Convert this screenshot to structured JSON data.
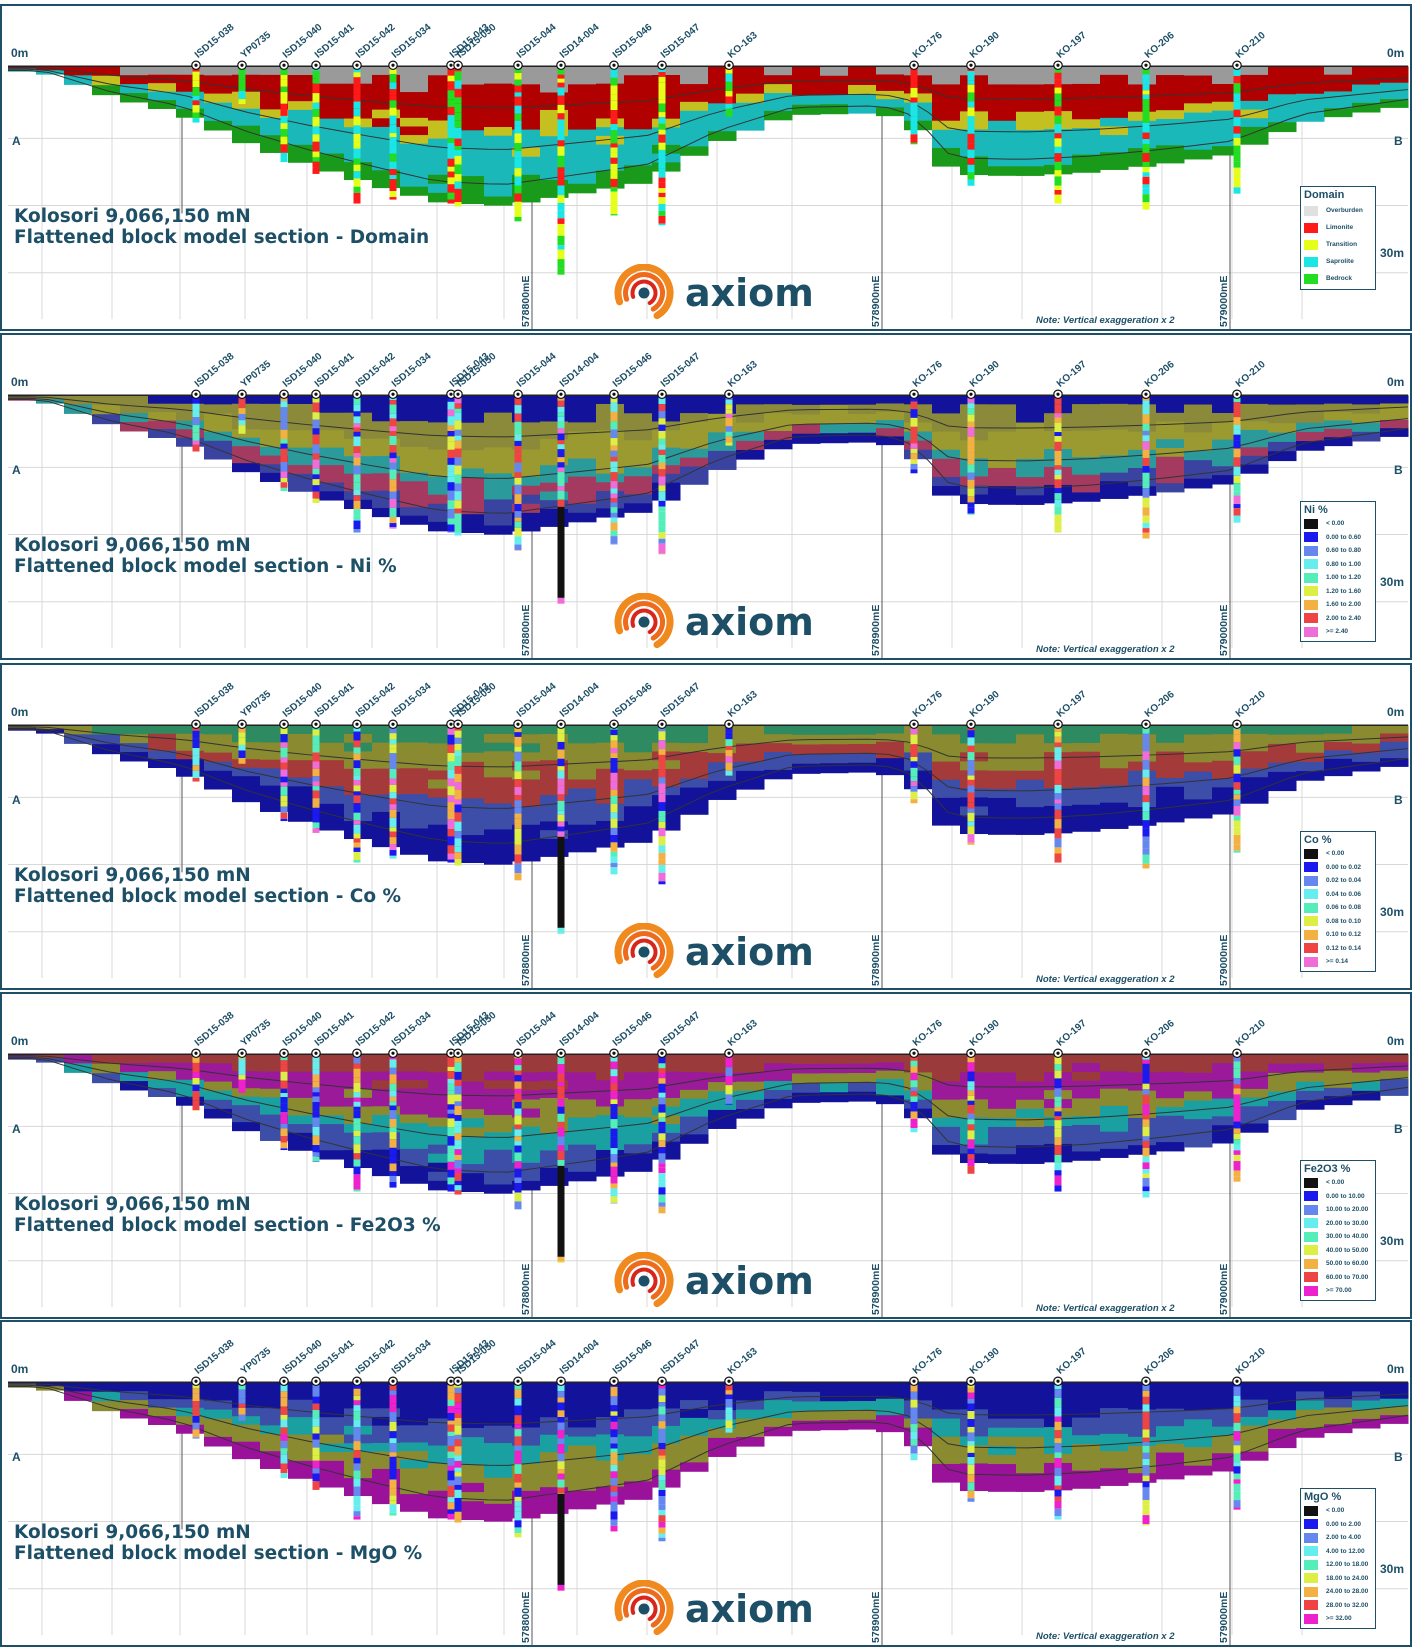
{
  "common": {
    "depth_top": "0m",
    "depth_bottom": "30m",
    "side_left": "A",
    "side_right": "B",
    "note": "Note: Vertical exaggeration x 2",
    "eastings": [
      "578800mE",
      "578900mE",
      "579000mE"
    ],
    "logo_text": "axiom",
    "section_line": "Kolosori 9,066,150 mN",
    "holes": [
      "ISD15-038",
      "YP0735",
      "ISD15-040",
      "ISD15-041",
      "ISD15-042",
      "ISD15-034",
      "ISD15-043",
      "ISD15-050",
      "ISD15-044",
      "ISD14-004",
      "ISD15-046",
      "ISD15-047",
      "KO-163",
      "KO-176",
      "KO-190",
      "KO-197",
      "KO-206",
      "KO-210"
    ]
  },
  "colors": {
    "brand_blue": "#1d4f66",
    "logo_orange": "#f08a1e",
    "logo_red": "#d9261c"
  },
  "panels": [
    {
      "id": "domain",
      "title": "Flattened block model section - Domain",
      "legend_title": "Domain",
      "legend": [
        {
          "label": "Overburden",
          "color": "#e0e0e0"
        },
        {
          "label": "Limonite",
          "color": "#ff1a1a"
        },
        {
          "label": "Transition",
          "color": "#e6ff1a"
        },
        {
          "label": "Saprolite",
          "color": "#1ae6e6"
        },
        {
          "label": "Bedrock",
          "color": "#22dd22"
        }
      ]
    },
    {
      "id": "ni",
      "title": "Flattened block model section - Ni %",
      "legend_title": "Ni %",
      "legend": [
        {
          "label": "< 0.00",
          "color": "#111111"
        },
        {
          "label": "0.00 to 0.60",
          "color": "#1a1aee"
        },
        {
          "label": "0.60 to 0.80",
          "color": "#6688ee"
        },
        {
          "label": "0.80 to 1.00",
          "color": "#66eeee"
        },
        {
          "label": "1.00 to 1.20",
          "color": "#55eebb"
        },
        {
          "label": "1.20 to 1.60",
          "color": "#ddee44"
        },
        {
          "label": "1.60 to 2.00",
          "color": "#f2b142"
        },
        {
          "label": "2.00 to 2.40",
          "color": "#ee4444"
        },
        {
          "label": ">= 2.40",
          "color": "#f06cd8"
        }
      ]
    },
    {
      "id": "co",
      "title": "Flattened block model section - Co %",
      "legend_title": "Co %",
      "legend": [
        {
          "label": "< 0.00",
          "color": "#111111"
        },
        {
          "label": "0.00 to 0.02",
          "color": "#1a1aee"
        },
        {
          "label": "0.02 to 0.04",
          "color": "#6688ee"
        },
        {
          "label": "0.04 to 0.06",
          "color": "#66eeee"
        },
        {
          "label": "0.06 to 0.08",
          "color": "#55eebb"
        },
        {
          "label": "0.08 to 0.10",
          "color": "#ddee44"
        },
        {
          "label": "0.10 to 0.12",
          "color": "#f2b142"
        },
        {
          "label": "0.12 to 0.14",
          "color": "#ee4444"
        },
        {
          "label": ">= 0.14",
          "color": "#f06cd8"
        }
      ]
    },
    {
      "id": "fe",
      "title": "Flattened block model section - Fe2O3 %",
      "legend_title": "Fe2O3 %",
      "legend": [
        {
          "label": "< 0.00",
          "color": "#111111"
        },
        {
          "label": "0.00 to 10.00",
          "color": "#1a1aee"
        },
        {
          "label": "10.00 to 20.00",
          "color": "#6688ee"
        },
        {
          "label": "20.00 to 30.00",
          "color": "#66eeee"
        },
        {
          "label": "30.00 to 40.00",
          "color": "#55eebb"
        },
        {
          "label": "40.00 to 50.00",
          "color": "#ddee44"
        },
        {
          "label": "50.00 to 60.00",
          "color": "#f2b142"
        },
        {
          "label": "60.00 to 70.00",
          "color": "#ee4444"
        },
        {
          "label": ">= 70.00",
          "color": "#ee22cc"
        }
      ]
    },
    {
      "id": "mgo",
      "title": "Flattened block model section - MgO %",
      "legend_title": "MgO %",
      "legend": [
        {
          "label": "< 0.00",
          "color": "#111111"
        },
        {
          "label": "0.00 to 2.00",
          "color": "#1a1aee"
        },
        {
          "label": "2.00 to 4.00",
          "color": "#6688ee"
        },
        {
          "label": "4.00 to 12.00",
          "color": "#66eeee"
        },
        {
          "label": "12.00 to 18.00",
          "color": "#55eebb"
        },
        {
          "label": "18.00 to 24.00",
          "color": "#ddee44"
        },
        {
          "label": "24.00 to 28.00",
          "color": "#f2b142"
        },
        {
          "label": "28.00 to 32.00",
          "color": "#ee4444"
        },
        {
          "label": ">= 32.00",
          "color": "#ee22cc"
        }
      ]
    }
  ]
}
